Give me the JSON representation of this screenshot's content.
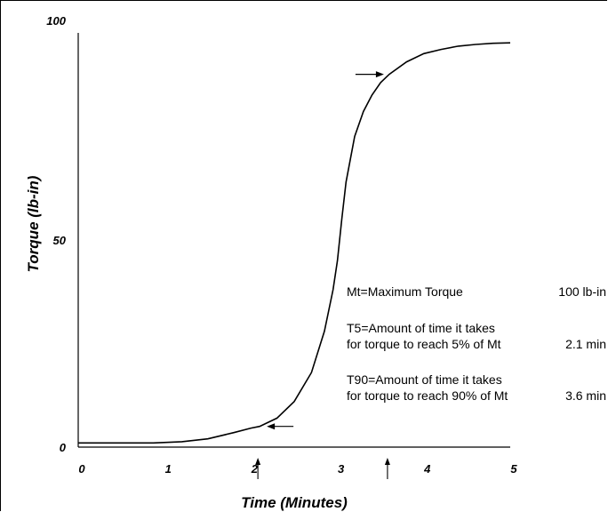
{
  "chart_data": {
    "type": "line",
    "xlabel": "Time (Minutes)",
    "ylabel": "Torque (lb-in)",
    "xlim": [
      0,
      5
    ],
    "ylim": [
      0,
      100
    ],
    "x_ticks": [
      {
        "value": 0,
        "label": "0"
      },
      {
        "value": 1,
        "label": "1"
      },
      {
        "value": 2,
        "label": "2"
      },
      {
        "value": 3,
        "label": "3"
      },
      {
        "value": 4,
        "label": "4"
      },
      {
        "value": 5,
        "label": "5"
      }
    ],
    "y_ticks": [
      {
        "value": 0,
        "label": "0"
      },
      {
        "value": 50,
        "label": "50"
      },
      {
        "value": 100,
        "label": "100"
      }
    ],
    "grid": false,
    "legend": "none",
    "series": [
      {
        "x": [
          0.0,
          0.87,
          1.2,
          1.5,
          1.8,
          2.0,
          2.1,
          2.3,
          2.5,
          2.7,
          2.85,
          2.95,
          3.0,
          3.05,
          3.1,
          3.2,
          3.3,
          3.4,
          3.5,
          3.6,
          3.8,
          4.0,
          4.2,
          4.4,
          4.6,
          4.8,
          5.0
        ],
        "y": [
          1,
          1,
          1.3,
          2,
          3.5,
          4.6,
          5,
          7,
          11,
          18,
          28,
          38,
          45,
          55,
          64,
          75,
          81,
          85,
          88,
          90,
          93,
          95,
          96,
          96.8,
          97.2,
          97.5,
          97.6
        ]
      }
    ],
    "markers": [
      {
        "label": "T5",
        "x": 2.1,
        "y": 5,
        "direction": "left"
      },
      {
        "label": "T90",
        "x": 3.6,
        "y": 90,
        "direction": "right"
      }
    ],
    "axis_arrows": [
      2.1,
      3.6
    ],
    "annotations": [
      {
        "text": "Mt=Maximum Torque",
        "value": "100 lb-in"
      },
      {
        "text": "T5=Amount of time it takes",
        "value": ""
      },
      {
        "text": "for torque to reach 5% of Mt",
        "value": "2.1 min"
      },
      {
        "text": "T90=Amount of time it takes",
        "value": ""
      },
      {
        "text": "for torque to reach 90% of Mt",
        "value": "3.6 min"
      }
    ]
  }
}
